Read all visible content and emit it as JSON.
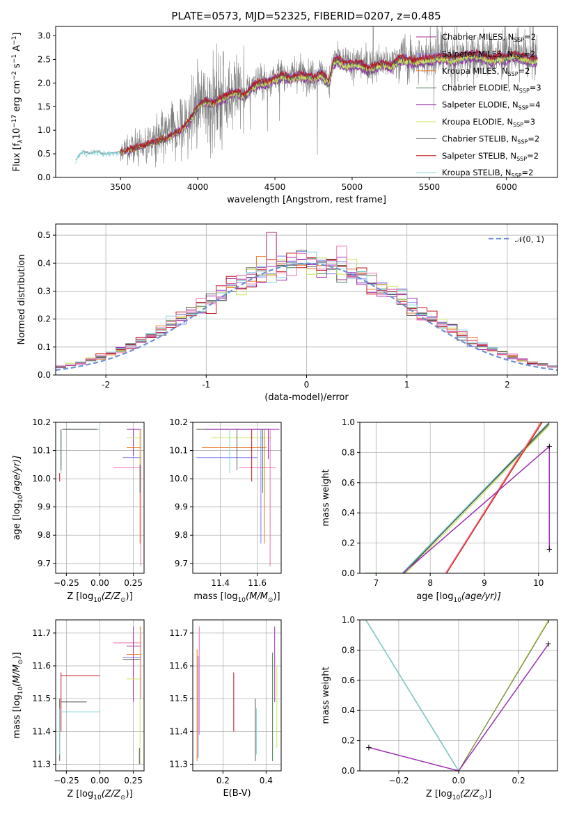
{
  "colors": {
    "chabrier_miles": "#aa2f99",
    "salpeter_miles": "#7b7bf0",
    "kroupa_miles": "#e87722",
    "chabrier_elodie": "#4f7f56",
    "salpeter_elodie": "#9b30b0",
    "kroupa_elodie": "#c9e55a",
    "chabrier_stelib": "#555555",
    "salpeter_stelib": "#c0141c",
    "kroupa_stelib": "#84d4dc",
    "data": "#7f7f7f",
    "pink": "#ee6fb0",
    "normal": "#6a8fd6",
    "grid": "#b0b0b0"
  },
  "title": "PLATE=0573, MJD=52325, FIBERID=0207, z=0.485",
  "legend": [
    {
      "label": "Chabrier MILES, N",
      "sub": "SSP",
      "post": "=2",
      "color": "chabrier_miles"
    },
    {
      "label": "Salpeter MILES, N",
      "sub": "SSP",
      "post": "=2",
      "color": "salpeter_miles"
    },
    {
      "label": "Kroupa MILES, N",
      "sub": "SSP",
      "post": "=2",
      "color": "kroupa_miles"
    },
    {
      "label": "Chabrier ELODIE, N",
      "sub": "SSP",
      "post": "=3",
      "color": "chabrier_elodie"
    },
    {
      "label": "Salpeter ELODIE, N",
      "sub": "SSP",
      "post": "=4",
      "color": "salpeter_elodie"
    },
    {
      "label": "Kroupa ELODIE, N",
      "sub": "SSP",
      "post": "=3",
      "color": "kroupa_elodie"
    },
    {
      "label": "Chabrier STELIB, N",
      "sub": "SSP",
      "post": "=2",
      "color": "chabrier_stelib"
    },
    {
      "label": "Salpeter STELIB, N",
      "sub": "SSP",
      "post": "=2",
      "color": "salpeter_stelib"
    },
    {
      "label": "Kroupa STELIB, N",
      "sub": "SSP",
      "post": "=2",
      "color": "kroupa_stelib"
    }
  ],
  "chart_data": [
    {
      "id": "spectrum",
      "type": "line",
      "xlabel": "wavelength [Angstrom, rest frame]",
      "ylabel_parts": [
        "Flux [f",
        "λ",
        "10",
        "−17",
        " erg cm",
        "−2",
        " s",
        "−1",
        " A",
        "−1",
        "]"
      ],
      "xlim": [
        3080,
        6330
      ],
      "ylim": [
        0,
        3.2
      ],
      "xticks": [
        3500,
        4000,
        4500,
        5000,
        5500,
        6000
      ],
      "yticks": [
        0.0,
        0.5,
        1.0,
        1.5,
        2.0,
        2.5,
        3.0
      ],
      "grid": false,
      "legend_position": "right",
      "model_continuum": {
        "x": [
          3210,
          3230,
          3260,
          3300,
          3350,
          3400,
          3450,
          3500,
          3550,
          3600,
          3650,
          3700,
          3750,
          3800,
          3850,
          3900,
          3950,
          4000,
          4050,
          4100,
          4150,
          4200,
          4250,
          4300,
          4350,
          4400,
          4450,
          4500,
          4550,
          4600,
          4650,
          4700,
          4750,
          4800,
          4850,
          4880,
          4900,
          4950,
          5000,
          5050,
          5100,
          5150,
          5200,
          5250,
          5300,
          5350,
          5400,
          5450,
          5500,
          5550,
          5600,
          5650,
          5700,
          5750,
          5800,
          5850,
          5900,
          5950,
          6000,
          6050,
          6100,
          6150,
          6200
        ],
        "y": [
          0.35,
          0.48,
          0.55,
          0.52,
          0.55,
          0.5,
          0.52,
          0.55,
          0.6,
          0.65,
          0.7,
          0.75,
          0.8,
          0.85,
          0.95,
          1.05,
          1.25,
          1.55,
          1.65,
          1.6,
          1.7,
          1.8,
          1.85,
          1.75,
          1.95,
          2.05,
          2.05,
          2.15,
          2.2,
          2.15,
          2.2,
          2.2,
          2.15,
          2.25,
          2.05,
          2.5,
          2.55,
          2.45,
          2.45,
          2.45,
          2.35,
          2.4,
          2.45,
          2.4,
          2.55,
          2.55,
          2.5,
          2.55,
          2.55,
          2.6,
          2.6,
          2.55,
          2.6,
          2.65,
          2.65,
          2.6,
          2.55,
          2.6,
          2.6,
          2.65,
          2.6,
          2.55,
          2.55
        ]
      }
    },
    {
      "id": "residuals",
      "type": "histogram",
      "xlabel": "(data-model)/error",
      "ylabel": "Normed distribution",
      "xlim": [
        -2.5,
        2.5
      ],
      "ylim": [
        0,
        0.54
      ],
      "xticks": [
        -2,
        -1,
        0,
        1,
        2
      ],
      "yticks": [
        0.0,
        0.1,
        0.2,
        0.3,
        0.4,
        0.5
      ],
      "grid": true,
      "legend_position": "top-right",
      "normal_legend": "𝒩(0, 1)",
      "bin_width": 0.1
    },
    {
      "id": "age_vs_z",
      "type": "errorbar",
      "xlabel_parts": [
        "Z [log",
        "10",
        "(Z/Z",
        "⊙",
        ")]"
      ],
      "ylabel_parts": [
        "age  [log",
        "10",
        "(age/yr)]"
      ],
      "xlim": [
        -0.33,
        0.33
      ],
      "ylim": [
        9.665,
        10.2
      ],
      "xticks": [
        -0.25,
        0.0,
        0.25
      ],
      "xticklabels": [
        "−0.25",
        "0.00",
        "0.25"
      ],
      "yticks": [
        9.7,
        9.8,
        9.9,
        10.0,
        10.1,
        10.2
      ],
      "grid": true
    },
    {
      "id": "age_vs_mass",
      "type": "errorbar",
      "xlabel_parts": [
        "mass [log",
        "10",
        "(M/M",
        "⊙",
        ")]"
      ],
      "xlim": [
        11.25,
        11.73
      ],
      "ylim": [
        9.665,
        10.2
      ],
      "xticks": [
        11.4,
        11.6
      ],
      "yticks": [
        9.7,
        9.8,
        9.9,
        10.0,
        10.1,
        10.2
      ],
      "grid": true
    },
    {
      "id": "massweight_vs_age",
      "type": "line",
      "xlabel_parts": [
        "age  [log",
        "10",
        "(age/yr)]"
      ],
      "ylabel": "mass weight",
      "xlim": [
        6.7,
        10.35
      ],
      "ylim": [
        0,
        1.0
      ],
      "xticks": [
        7,
        8,
        9,
        10
      ],
      "yticks": [
        0.0,
        0.2,
        0.4,
        0.6,
        0.8,
        1.0
      ],
      "grid": true
    },
    {
      "id": "mass_vs_z",
      "type": "errorbar",
      "xlabel_parts": [
        "Z [log",
        "10",
        "(Z/Z",
        "⊙",
        ")]"
      ],
      "ylabel_parts": [
        "mass [log",
        "10",
        "(M/M",
        "⊙",
        ")]"
      ],
      "xlim": [
        -0.33,
        0.33
      ],
      "ylim": [
        11.28,
        11.74
      ],
      "xticks": [
        -0.25,
        0.0,
        0.25
      ],
      "xticklabels": [
        "−0.25",
        "0.00",
        "0.25"
      ],
      "yticks": [
        11.3,
        11.4,
        11.5,
        11.6,
        11.7
      ],
      "grid": true
    },
    {
      "id": "mass_vs_ebv",
      "type": "errorbar",
      "xlabel": "E(B-V)",
      "xlim": [
        0.06,
        0.47
      ],
      "ylim": [
        11.28,
        11.74
      ],
      "xticks": [
        0.2,
        0.4
      ],
      "yticks": [
        11.3,
        11.4,
        11.5,
        11.6,
        11.7
      ],
      "grid": true
    },
    {
      "id": "massweight_vs_z",
      "type": "line",
      "xlabel_parts": [
        "Z [log",
        "10",
        "(Z/Z",
        "⊙",
        ")]"
      ],
      "ylabel": "mass weight",
      "xlim": [
        -0.33,
        0.33
      ],
      "ylim": [
        0,
        1.0
      ],
      "xticks": [
        -0.2,
        0.0,
        0.2
      ],
      "xticklabels": [
        "−0.2",
        "0.0",
        "0.2"
      ],
      "yticks": [
        0.0,
        0.2,
        0.4,
        0.6,
        0.8,
        1.0
      ],
      "grid": true
    }
  ]
}
